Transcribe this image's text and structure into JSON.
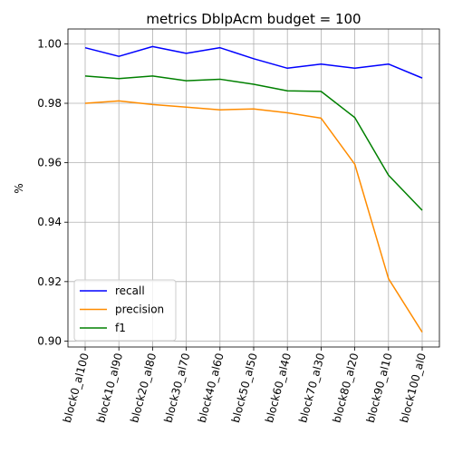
{
  "chart_data": {
    "type": "line",
    "title": "metrics DblpAcm budget = 100",
    "xlabel": "",
    "ylabel": "%",
    "categories": [
      "block0_al100",
      "block10_al90",
      "block20_al80",
      "block30_al70",
      "block40_al60",
      "block50_al50",
      "block60_al40",
      "block70_al30",
      "block80_al20",
      "block90_al10",
      "block100_al0"
    ],
    "ylim": [
      0.898,
      1.005
    ],
    "yticks": [
      "0.90",
      "0.92",
      "0.94",
      "0.96",
      "0.98",
      "1.00"
    ],
    "grid": true,
    "legend_position": "lower-left",
    "series": [
      {
        "name": "recall",
        "color": "#0000ff",
        "values": [
          0.9987,
          0.9958,
          0.9991,
          0.9968,
          0.9987,
          0.995,
          0.9918,
          0.9932,
          0.9918,
          0.9932,
          0.9885
        ]
      },
      {
        "name": "precision",
        "color": "#ff8c00",
        "values": [
          0.98,
          0.9808,
          0.9796,
          0.9787,
          0.9778,
          0.9781,
          0.9768,
          0.975,
          0.9595,
          0.921,
          0.903
        ]
      },
      {
        "name": "f1",
        "color": "#008000",
        "values": [
          0.9892,
          0.9883,
          0.9892,
          0.9876,
          0.9881,
          0.9864,
          0.9842,
          0.984,
          0.9752,
          0.9558,
          0.944
        ]
      }
    ]
  }
}
